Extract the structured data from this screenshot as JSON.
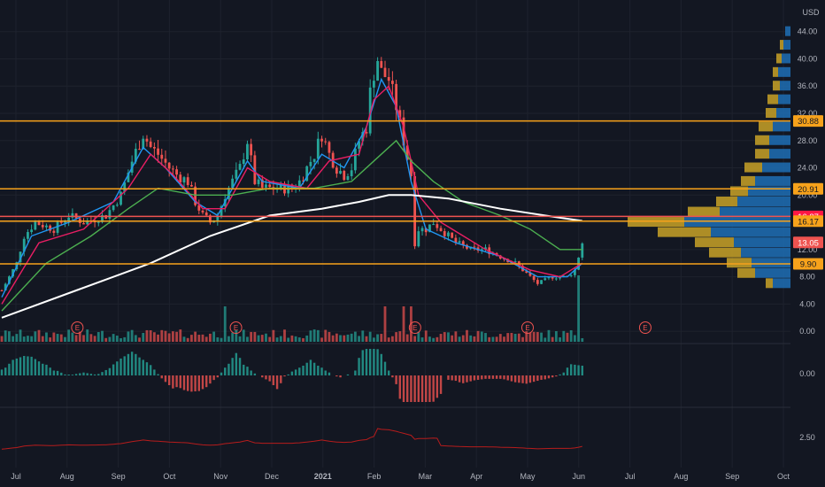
{
  "currency": "USD",
  "colors": {
    "background": "#131722",
    "grid": "#1e222d",
    "up": "#26a69a",
    "down": "#ef5350",
    "hline": "#f7a21b",
    "ma_blue": "#2196f3",
    "ma_pink": "#e91e63",
    "ma_green": "#4caf50",
    "ma_white": "#ffffff",
    "vp_blue": "#1e6fb5",
    "vp_gold": "#c9a227",
    "indicator2": "#b71c1c"
  },
  "chart_data": {
    "type": "candlestick",
    "y_axis": {
      "ticks": [
        "44.00",
        "40.00",
        "36.00",
        "32.00",
        "28.00",
        "24.00",
        "20.00",
        "16.00",
        "12.00",
        "8.00",
        "4.00",
        "0.00"
      ],
      "range": [
        -0.5,
        45
      ]
    },
    "x_axis": {
      "labels": [
        "Jul",
        "Aug",
        "Sep",
        "Oct",
        "Nov",
        "Dec",
        "2021",
        "Feb",
        "Mar",
        "Apr",
        "May",
        "Jun",
        "Jul",
        "Aug",
        "Sep",
        "Oct"
      ]
    },
    "price_labels": [
      {
        "value": 30.88,
        "text": "30.88",
        "style": "orange"
      },
      {
        "value": 20.91,
        "text": "20.91",
        "style": "orange"
      },
      {
        "value": 16.87,
        "text": "16.87",
        "style": "red"
      },
      {
        "value": 16.17,
        "text": "16.17",
        "style": "orange"
      },
      {
        "value": 13.05,
        "text": "13.05",
        "style": "redsoft"
      },
      {
        "value": 9.9,
        "text": "9.90",
        "style": "orange"
      }
    ],
    "horizontal_lines": [
      30.88,
      20.91,
      16.87,
      16.17,
      9.9
    ],
    "price_path": [
      [
        0,
        6
      ],
      [
        4,
        10
      ],
      [
        6,
        14
      ],
      [
        9,
        16
      ],
      [
        14,
        15
      ],
      [
        18,
        17
      ],
      [
        22,
        16
      ],
      [
        28,
        17
      ],
      [
        32,
        20
      ],
      [
        35,
        25
      ],
      [
        38,
        29
      ],
      [
        40,
        27
      ],
      [
        42,
        26
      ],
      [
        45,
        24
      ],
      [
        47,
        23
      ],
      [
        50,
        22
      ],
      [
        52,
        19
      ],
      [
        54,
        17
      ],
      [
        56,
        16
      ],
      [
        58,
        17
      ],
      [
        60,
        20
      ],
      [
        62,
        22
      ],
      [
        64,
        24
      ],
      [
        66,
        28
      ],
      [
        67,
        25
      ],
      [
        68,
        22
      ],
      [
        70,
        21
      ],
      [
        74,
        21
      ],
      [
        78,
        21
      ],
      [
        80,
        22
      ],
      [
        82,
        24
      ],
      [
        84,
        26
      ],
      [
        86,
        29
      ],
      [
        88,
        26
      ],
      [
        90,
        24
      ],
      [
        92,
        23
      ],
      [
        94,
        24
      ],
      [
        96,
        28
      ],
      [
        98,
        30
      ],
      [
        99,
        35
      ],
      [
        100,
        38
      ],
      [
        101,
        40
      ],
      [
        102,
        38
      ],
      [
        104,
        37
      ],
      [
        106,
        33
      ],
      [
        108,
        28
      ],
      [
        110,
        23
      ],
      [
        111,
        13
      ],
      [
        112,
        15
      ],
      [
        114,
        15
      ],
      [
        116,
        16
      ],
      [
        118,
        15
      ],
      [
        120,
        14
      ],
      [
        122,
        13
      ],
      [
        126,
        12
      ],
      [
        130,
        12
      ],
      [
        134,
        11
      ],
      [
        138,
        10
      ],
      [
        142,
        8
      ],
      [
        144,
        7
      ],
      [
        148,
        8
      ],
      [
        152,
        8
      ],
      [
        154,
        9
      ],
      [
        155,
        11
      ],
      [
        156,
        13
      ]
    ],
    "ma_lines": [
      {
        "color_key": "ma_blue",
        "points": [
          [
            0,
            5
          ],
          [
            8,
            14
          ],
          [
            18,
            16
          ],
          [
            30,
            19
          ],
          [
            38,
            27
          ],
          [
            44,
            24
          ],
          [
            52,
            19
          ],
          [
            58,
            17
          ],
          [
            66,
            25
          ],
          [
            70,
            22
          ],
          [
            80,
            21
          ],
          [
            86,
            26
          ],
          [
            92,
            24
          ],
          [
            98,
            30
          ],
          [
            102,
            37
          ],
          [
            106,
            33
          ],
          [
            110,
            22
          ],
          [
            114,
            15
          ],
          [
            122,
            13
          ],
          [
            134,
            11
          ],
          [
            144,
            8
          ],
          [
            152,
            8
          ],
          [
            156,
            10
          ]
        ]
      },
      {
        "color_key": "ma_pink",
        "points": [
          [
            0,
            4
          ],
          [
            10,
            13
          ],
          [
            22,
            15
          ],
          [
            34,
            21
          ],
          [
            40,
            26
          ],
          [
            46,
            23
          ],
          [
            54,
            18
          ],
          [
            60,
            18
          ],
          [
            66,
            24
          ],
          [
            72,
            22
          ],
          [
            82,
            21
          ],
          [
            88,
            25
          ],
          [
            96,
            26
          ],
          [
            100,
            34
          ],
          [
            104,
            36
          ],
          [
            108,
            30
          ],
          [
            112,
            20
          ],
          [
            118,
            16
          ],
          [
            130,
            12
          ],
          [
            142,
            9
          ],
          [
            150,
            8
          ],
          [
            156,
            10
          ]
        ]
      },
      {
        "color_key": "ma_green",
        "points": [
          [
            0,
            3
          ],
          [
            12,
            10
          ],
          [
            24,
            14
          ],
          [
            34,
            18
          ],
          [
            42,
            21
          ],
          [
            52,
            20
          ],
          [
            62,
            20
          ],
          [
            72,
            21
          ],
          [
            84,
            21
          ],
          [
            94,
            22
          ],
          [
            100,
            25
          ],
          [
            106,
            28
          ],
          [
            110,
            25
          ],
          [
            116,
            22
          ],
          [
            124,
            19
          ],
          [
            134,
            17
          ],
          [
            142,
            15
          ],
          [
            150,
            12
          ],
          [
            156,
            12
          ]
        ]
      },
      {
        "color_key": "ma_white",
        "points": [
          [
            0,
            2
          ],
          [
            20,
            6
          ],
          [
            40,
            10
          ],
          [
            56,
            14
          ],
          [
            72,
            17
          ],
          [
            86,
            18
          ],
          [
            96,
            19
          ],
          [
            104,
            20
          ],
          [
            110,
            20
          ],
          [
            120,
            19.5
          ],
          [
            134,
            18
          ],
          [
            146,
            17
          ],
          [
            156,
            16.2
          ]
        ]
      }
    ],
    "earnings_markers": {
      "label": "E",
      "months": [
        1.2,
        4.3,
        7.8,
        10.0,
        12.3
      ]
    },
    "volume_axis": {
      "label": "0.00"
    },
    "indicator1_axis": {
      "label": "0.00"
    },
    "indicator2_axis": {
      "label": "2.50"
    },
    "volume_profile": [
      {
        "price": 44,
        "blue": 0.03,
        "gold": 0.0
      },
      {
        "price": 42,
        "blue": 0.04,
        "gold": 0.02
      },
      {
        "price": 40,
        "blue": 0.05,
        "gold": 0.03
      },
      {
        "price": 38,
        "blue": 0.07,
        "gold": 0.03
      },
      {
        "price": 36,
        "blue": 0.06,
        "gold": 0.04
      },
      {
        "price": 34,
        "blue": 0.07,
        "gold": 0.06
      },
      {
        "price": 32,
        "blue": 0.08,
        "gold": 0.06
      },
      {
        "price": 30,
        "blue": 0.1,
        "gold": 0.08
      },
      {
        "price": 28,
        "blue": 0.12,
        "gold": 0.08
      },
      {
        "price": 26,
        "blue": 0.12,
        "gold": 0.08
      },
      {
        "price": 24,
        "blue": 0.16,
        "gold": 0.1
      },
      {
        "price": 22,
        "blue": 0.2,
        "gold": 0.08
      },
      {
        "price": 20.5,
        "blue": 0.24,
        "gold": 0.1
      },
      {
        "price": 19,
        "blue": 0.3,
        "gold": 0.12
      },
      {
        "price": 17.5,
        "blue": 0.4,
        "gold": 0.18
      },
      {
        "price": 16,
        "blue": 0.6,
        "gold": 0.32
      },
      {
        "price": 14.5,
        "blue": 0.45,
        "gold": 0.3
      },
      {
        "price": 13,
        "blue": 0.32,
        "gold": 0.22
      },
      {
        "price": 11.5,
        "blue": 0.28,
        "gold": 0.18
      },
      {
        "price": 10,
        "blue": 0.22,
        "gold": 0.14
      },
      {
        "price": 8.5,
        "blue": 0.2,
        "gold": 0.1
      },
      {
        "price": 7,
        "blue": 0.1,
        "gold": 0.04
      }
    ]
  }
}
